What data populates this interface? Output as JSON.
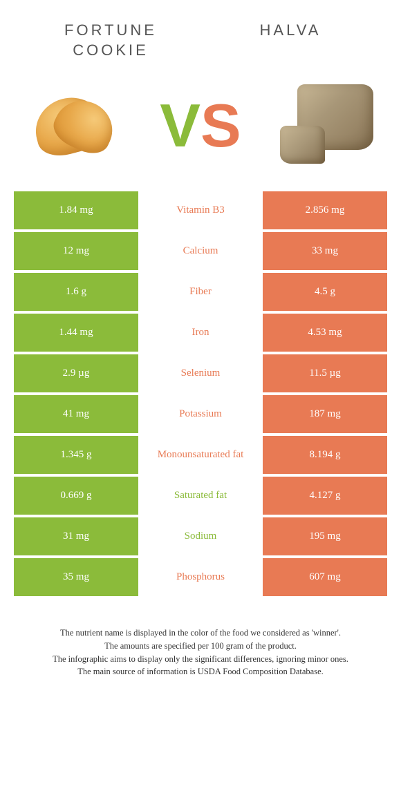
{
  "header": {
    "left": "Fortune cookie",
    "right": "Halva"
  },
  "vs": {
    "v": "V",
    "s": "S"
  },
  "colors": {
    "green": "#8bbb3a",
    "orange": "#e87a54"
  },
  "rows": [
    {
      "left": "1.84 mg",
      "label": "Vitamin B3",
      "right": "2.856 mg",
      "winner": "orange"
    },
    {
      "left": "12 mg",
      "label": "Calcium",
      "right": "33 mg",
      "winner": "orange"
    },
    {
      "left": "1.6 g",
      "label": "Fiber",
      "right": "4.5 g",
      "winner": "orange"
    },
    {
      "left": "1.44 mg",
      "label": "Iron",
      "right": "4.53 mg",
      "winner": "orange"
    },
    {
      "left": "2.9 µg",
      "label": "Selenium",
      "right": "11.5 µg",
      "winner": "orange"
    },
    {
      "left": "41 mg",
      "label": "Potassium",
      "right": "187 mg",
      "winner": "orange"
    },
    {
      "left": "1.345 g",
      "label": "Monounsaturated fat",
      "right": "8.194 g",
      "winner": "orange"
    },
    {
      "left": "0.669 g",
      "label": "Saturated fat",
      "right": "4.127 g",
      "winner": "green"
    },
    {
      "left": "31 mg",
      "label": "Sodium",
      "right": "195 mg",
      "winner": "green"
    },
    {
      "left": "35 mg",
      "label": "Phosphorus",
      "right": "607 mg",
      "winner": "orange"
    }
  ],
  "footer": {
    "line1": "The nutrient name is displayed in the color of the food we considered as 'winner'.",
    "line2": "The amounts are specified per 100 gram of the product.",
    "line3": "The infographic aims to display only the significant differences, ignoring minor ones.",
    "line4": "The main source of information is USDA Food Composition Database."
  }
}
